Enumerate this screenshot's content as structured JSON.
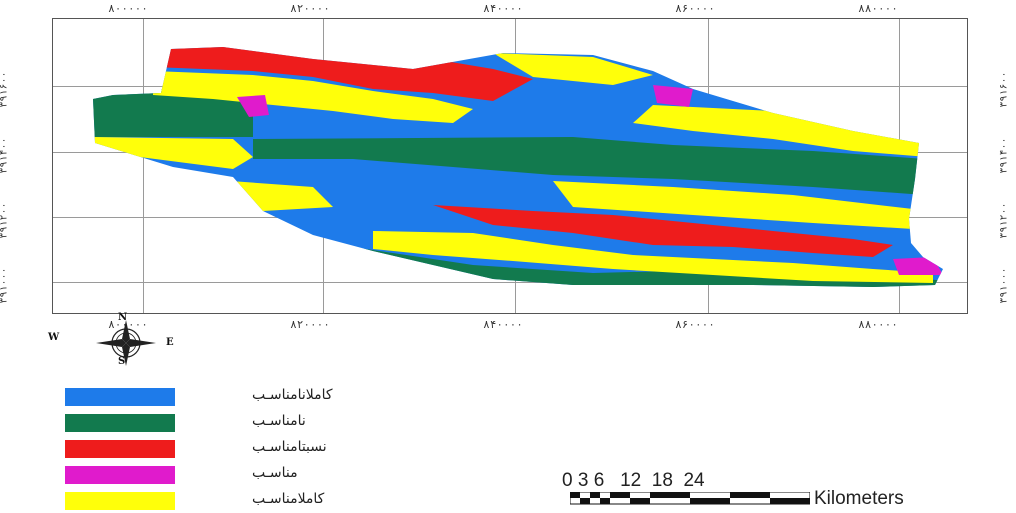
{
  "map": {
    "x_ticks_top": [
      "۸۰۰۰۰۰",
      "۸۲۰۰۰۰",
      "۸۴۰۰۰۰",
      "۸۶۰۰۰۰",
      "۸۸۰۰۰۰"
    ],
    "x_ticks_bottom": [
      "۸۰۰۰۰۰",
      "۸۲۰۰۰۰",
      "۸۴۰۰۰۰",
      "۸۶۰۰۰۰",
      "۸۸۰۰۰۰"
    ],
    "y_ticks_left": [
      "۳۹۱۶۰۰",
      "۳۹۱۴۰۰",
      "۳۹۱۲۰۰",
      "۳۹۱۰۰۰"
    ],
    "y_ticks_right": [
      "۳۹۱۶۰۰",
      "۳۹۱۴۰۰",
      "۳۹۱۲۰۰",
      "۳۹۱۰۰۰"
    ]
  },
  "compass": {
    "north": "N",
    "south": "S",
    "east": "E",
    "west": "W"
  },
  "legend": {
    "items": [
      {
        "label": "کاملانامناسـب",
        "color": "#1e7bea"
      },
      {
        "label": "نامناسـب",
        "color": "#127a4e"
      },
      {
        "label": "نسبتامناسـب",
        "color": "#ee1c1c"
      },
      {
        "label": "مناسـب",
        "color": "#e01bcc"
      },
      {
        "label": "کاملامناسـب",
        "color": "#ffff0a"
      }
    ]
  },
  "scalebar": {
    "numbers": "0 3 6   12  18  24",
    "units": "Kilometers"
  }
}
